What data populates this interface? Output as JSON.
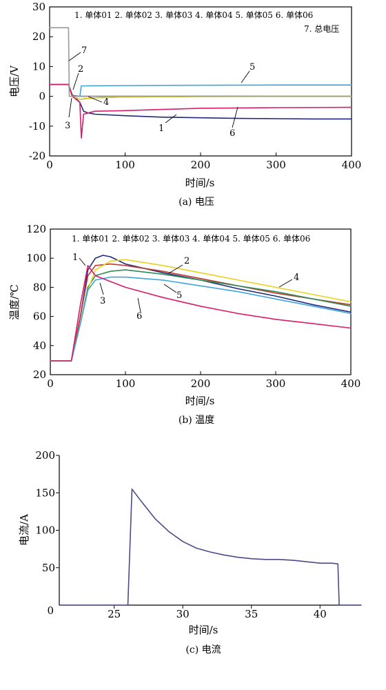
{
  "figures": {
    "a": {
      "caption": "(a) 电压",
      "legend_line1": "1. 单体01  2. 单体02  3. 单体03  4. 单体04  5. 单体05  6. 单体06",
      "legend_line2": "7. 总电压"
    },
    "b": {
      "caption": "(b) 温度",
      "legend_line1": "1. 单体01  2. 单体02  3. 单体03  4. 单体04  5. 单体05  6. 单体06"
    },
    "c": {
      "caption": "(c) 电流"
    }
  },
  "chart_data": [
    {
      "type": "line",
      "xlabel": "时间/s",
      "ylabel": "电压/V",
      "xlim": [
        0,
        400
      ],
      "ylim": [
        -20,
        30
      ],
      "xticks": [
        0,
        100,
        200,
        300,
        400
      ],
      "yticks": [
        -20,
        -10,
        0,
        10,
        20,
        30
      ],
      "series": [
        {
          "name": "单体01",
          "label": "1",
          "color": "#1f2a7a",
          "x": [
            0,
            25,
            30,
            40,
            45,
            50,
            60,
            100,
            150,
            200,
            250,
            300,
            350,
            400
          ],
          "y": [
            4,
            4,
            0.5,
            -2,
            -5,
            -5.5,
            -6,
            -6.5,
            -7,
            -7.2,
            -7.4,
            -7.5,
            -7.6,
            -7.6
          ]
        },
        {
          "name": "单体02",
          "label": "2",
          "color": "#555555",
          "x": [
            0,
            25,
            30,
            40,
            100,
            200,
            300,
            400
          ],
          "y": [
            4,
            4,
            0.3,
            0,
            0,
            0,
            0,
            0
          ]
        },
        {
          "name": "单体03",
          "label": "3",
          "color": "#2e8b57",
          "x": [
            0,
            25,
            30,
            40,
            60,
            100,
            200,
            300,
            400
          ],
          "y": [
            4,
            4,
            0,
            -1,
            -0.5,
            -0.2,
            0,
            0,
            0
          ]
        },
        {
          "name": "单体04",
          "label": "4",
          "color": "#e8d21a",
          "x": [
            0,
            25,
            30,
            40,
            45,
            60,
            100,
            200,
            300,
            400
          ],
          "y": [
            4,
            4,
            0,
            -1,
            -0.8,
            -0.5,
            -0.2,
            -0.1,
            0,
            0
          ]
        },
        {
          "name": "单体05",
          "label": "5",
          "color": "#3ea4e0",
          "x": [
            0,
            25,
            30,
            40,
            42,
            45,
            100,
            200,
            300,
            400
          ],
          "y": [
            4,
            4,
            0,
            0,
            3.5,
            3.5,
            3.6,
            3.7,
            3.8,
            3.8
          ]
        },
        {
          "name": "单体06",
          "label": "6",
          "color": "#d81b6a",
          "x": [
            0,
            25,
            30,
            40,
            42,
            45,
            60,
            100,
            150,
            200,
            300,
            400
          ],
          "y": [
            4,
            4,
            0,
            -2,
            -14,
            -6,
            -5,
            -4.8,
            -4.4,
            -4,
            -3.8,
            -3.7
          ]
        },
        {
          "name": "总电压",
          "label": "7",
          "color": "#999999",
          "x": [
            0,
            25,
            26,
            30,
            40,
            100,
            200,
            300,
            400
          ],
          "y": [
            23,
            23,
            0,
            0,
            0,
            0,
            0,
            0,
            0
          ]
        }
      ]
    },
    {
      "type": "line",
      "xlabel": "时间/s",
      "ylabel": "温度/℃",
      "xlim": [
        0,
        400
      ],
      "ylim": [
        20,
        120
      ],
      "xticks": [
        0,
        100,
        200,
        300,
        400
      ],
      "yticks": [
        20,
        40,
        60,
        80,
        100,
        120
      ],
      "series": [
        {
          "name": "单体01",
          "label": "1",
          "color": "#1f2a7a",
          "x": [
            0,
            28,
            40,
            50,
            60,
            70,
            80,
            100,
            150,
            200,
            250,
            300,
            350,
            400
          ],
          "y": [
            29.5,
            29.5,
            60,
            92,
            100,
            102,
            101,
            96,
            90,
            85,
            79,
            74,
            68,
            63
          ]
        },
        {
          "name": "单体02",
          "label": "2",
          "color": "#c0392b",
          "x": [
            0,
            28,
            40,
            50,
            60,
            80,
            100,
            150,
            200,
            250,
            300,
            350,
            400
          ],
          "y": [
            29.5,
            29.5,
            60,
            88,
            95,
            96,
            95,
            91,
            86,
            81,
            76,
            72,
            68
          ]
        },
        {
          "name": "单体03",
          "label": "3",
          "color": "#2e8b57",
          "x": [
            0,
            28,
            40,
            50,
            60,
            80,
            100,
            150,
            200,
            250,
            300,
            350,
            400
          ],
          "y": [
            29.5,
            29.5,
            55,
            80,
            88,
            91,
            92,
            89,
            85,
            81,
            77,
            72,
            67
          ]
        },
        {
          "name": "单体04",
          "label": "4",
          "color": "#e8d21a",
          "x": [
            0,
            28,
            40,
            50,
            60,
            80,
            100,
            150,
            200,
            250,
            300,
            350,
            400
          ],
          "y": [
            29.5,
            29.5,
            55,
            78,
            92,
            98,
            99,
            95,
            90,
            85,
            80,
            75,
            70
          ]
        },
        {
          "name": "单体05",
          "label": "5",
          "color": "#3ea4e0",
          "x": [
            0,
            28,
            40,
            50,
            60,
            80,
            100,
            150,
            200,
            250,
            300,
            350,
            400
          ],
          "y": [
            29.5,
            29.5,
            55,
            78,
            85,
            87,
            87,
            85,
            81,
            77,
            72,
            67,
            62
          ]
        },
        {
          "name": "单体06",
          "label": "6",
          "color": "#d81b6a",
          "x": [
            0,
            28,
            40,
            50,
            60,
            80,
            100,
            150,
            200,
            250,
            300,
            350,
            400
          ],
          "y": [
            29.5,
            29.5,
            68,
            95,
            88,
            84,
            80,
            73,
            67,
            62,
            58,
            55,
            52
          ]
        }
      ]
    },
    {
      "type": "line",
      "xlabel": "时间/s",
      "ylabel": "电流/A",
      "xlim": [
        21,
        43
      ],
      "ylim": [
        0,
        200
      ],
      "xticks": [
        25,
        30,
        35,
        40
      ],
      "yticks": [
        50,
        100,
        150,
        200
      ],
      "y_origin_label": "0",
      "series": [
        {
          "name": "",
          "color": "#4a4a8a",
          "x": [
            21,
            26,
            26.3,
            27,
            28,
            29,
            30,
            31,
            32,
            33,
            34,
            35,
            36,
            37,
            38,
            39,
            40,
            40.9,
            41.3,
            41.4,
            43
          ],
          "y": [
            0,
            0,
            155,
            138,
            115,
            98,
            85,
            76,
            71,
            67,
            64,
            62,
            61,
            61,
            60,
            58,
            56,
            56,
            55,
            0,
            0
          ]
        }
      ]
    }
  ]
}
